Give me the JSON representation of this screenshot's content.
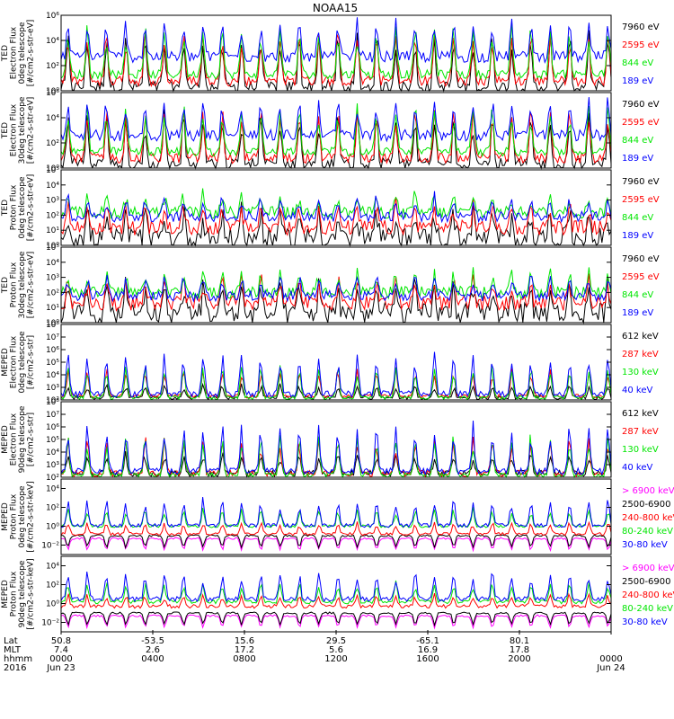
{
  "title": "NOAA15",
  "colors": {
    "black": "#000000",
    "blue": "#0000ff",
    "red": "#ff0000",
    "green": "#00e600",
    "magenta": "#ff00ff",
    "frame": "#000000"
  },
  "chart_data": [
    {
      "type": "line",
      "ylabel": [
        "TED",
        "Electron Flux",
        "0deg telescope",
        "[#/cm2-s-str-eV]"
      ],
      "yscale": "log",
      "ylim": [
        1,
        1000000
      ],
      "yticks": [
        {
          "v": 1,
          "label": "10⁰"
        },
        {
          "v": 100,
          "label": "10²"
        },
        {
          "v": 10000,
          "label": "10⁴"
        },
        {
          "v": 1000000,
          "label": "10⁶"
        }
      ],
      "series": [
        {
          "name": "7960 eV",
          "color": "black",
          "base": 2,
          "peak": 60000,
          "noise": 1.0
        },
        {
          "name": "2595 eV",
          "color": "red",
          "base": 6,
          "peak": 100000,
          "noise": 0.8
        },
        {
          "name": "844 eV",
          "color": "green",
          "base": 20,
          "peak": 200000,
          "noise": 0.7
        },
        {
          "name": "189 eV",
          "color": "blue",
          "base": 500,
          "peak": 400000,
          "noise": 0.9
        }
      ]
    },
    {
      "type": "line",
      "ylabel": [
        "TED",
        "Electron Flux",
        "30deg telescope",
        "[#/cm2-s-str-eV]"
      ],
      "yscale": "log",
      "ylim": [
        1,
        1000000
      ],
      "yticks": [
        {
          "v": 1,
          "label": "10⁰"
        },
        {
          "v": 100,
          "label": "10²"
        },
        {
          "v": 10000,
          "label": "10⁴"
        },
        {
          "v": 1000000,
          "label": "10⁶"
        }
      ],
      "series": [
        {
          "name": "7960 eV",
          "color": "black",
          "base": 2,
          "peak": 50000,
          "noise": 1.0
        },
        {
          "name": "2595 eV",
          "color": "red",
          "base": 6,
          "peak": 90000,
          "noise": 0.8
        },
        {
          "name": "844 eV",
          "color": "green",
          "base": 20,
          "peak": 150000,
          "noise": 0.7
        },
        {
          "name": "189 eV",
          "color": "blue",
          "base": 400,
          "peak": 300000,
          "noise": 0.9
        }
      ]
    },
    {
      "type": "line",
      "ylabel": [
        "TED",
        "Proton Flux",
        "0deg telescope",
        "[#/cm2-s-str-eV]"
      ],
      "yscale": "log",
      "ylim": [
        1,
        100000
      ],
      "yticks": [
        {
          "v": 1,
          "label": "10⁰"
        },
        {
          "v": 10,
          "label": "10¹"
        },
        {
          "v": 100,
          "label": "10²"
        },
        {
          "v": 1000,
          "label": "10³"
        },
        {
          "v": 10000,
          "label": "10⁴"
        },
        {
          "v": 100000,
          "label": "10⁵"
        }
      ],
      "series": [
        {
          "name": "7960 eV",
          "color": "black",
          "base": 3,
          "peak": 400,
          "noise": 1.4
        },
        {
          "name": "2595 eV",
          "color": "red",
          "base": 15,
          "peak": 800,
          "noise": 1.0
        },
        {
          "name": "844 eV",
          "color": "green",
          "base": 150,
          "peak": 3000,
          "noise": 0.8
        },
        {
          "name": "189 eV",
          "color": "blue",
          "base": 80,
          "peak": 2000,
          "noise": 0.7
        }
      ]
    },
    {
      "type": "line",
      "ylabel": [
        "TED",
        "Proton Flux",
        "30deg telescope",
        "[#/cm2-s-str-eV]"
      ],
      "yscale": "log",
      "ylim": [
        1,
        100000
      ],
      "yticks": [
        {
          "v": 1,
          "label": "10⁰"
        },
        {
          "v": 10,
          "label": "10¹"
        },
        {
          "v": 100,
          "label": "10²"
        },
        {
          "v": 1000,
          "label": "10³"
        },
        {
          "v": 10000,
          "label": "10⁴"
        },
        {
          "v": 100000,
          "label": "10⁵"
        }
      ],
      "series": [
        {
          "name": "7960 eV",
          "color": "black",
          "base": 4,
          "peak": 500,
          "noise": 1.4
        },
        {
          "name": "2595 eV",
          "color": "red",
          "base": 20,
          "peak": 1000,
          "noise": 1.0
        },
        {
          "name": "844 eV",
          "color": "green",
          "base": 100,
          "peak": 3000,
          "noise": 0.8
        },
        {
          "name": "189 eV",
          "color": "blue",
          "base": 60,
          "peak": 1500,
          "noise": 0.7
        }
      ]
    },
    {
      "type": "line",
      "ylabel": [
        "MEPED",
        "Electron Flux",
        "0deg telescope",
        "[#/cm2-s-str]"
      ],
      "yscale": "log",
      "ylim": [
        100,
        100000000
      ],
      "yticks": [
        {
          "v": 100,
          "label": "10²"
        },
        {
          "v": 1000,
          "label": "10³"
        },
        {
          "v": 10000,
          "label": "10⁴"
        },
        {
          "v": 100000,
          "label": "10⁵"
        },
        {
          "v": 1000000,
          "label": "10⁶"
        },
        {
          "v": 10000000,
          "label": "10⁷"
        },
        {
          "v": 100000000,
          "label": "10⁸"
        }
      ],
      "series": [
        {
          "name": "612 keV",
          "color": "black",
          "base": 150,
          "peak": 2000,
          "noise": 0.3
        },
        {
          "name": "287 keV",
          "color": "red",
          "base": 200,
          "peak": 40000,
          "noise": 0.3
        },
        {
          "name": "130 keV",
          "color": "green",
          "base": 150,
          "peak": 100000,
          "noise": 0.3
        },
        {
          "name": "40 keV",
          "color": "blue",
          "base": 300,
          "peak": 1000000,
          "noise": 0.5
        }
      ]
    },
    {
      "type": "line",
      "ylabel": [
        "MEPED",
        "Electron Flux",
        "90deg telescope",
        "[#/cm2-s-str]"
      ],
      "yscale": "log",
      "ylim": [
        100,
        100000000
      ],
      "yticks": [
        {
          "v": 100,
          "label": "10²"
        },
        {
          "v": 1000,
          "label": "10³"
        },
        {
          "v": 10000,
          "label": "10⁴"
        },
        {
          "v": 100000,
          "label": "10⁵"
        },
        {
          "v": 1000000,
          "label": "10⁶"
        },
        {
          "v": 10000000,
          "label": "10⁷"
        },
        {
          "v": 100000000,
          "label": "10⁸"
        }
      ],
      "series": [
        {
          "name": "612 keV",
          "color": "black",
          "base": 200,
          "peak": 10000,
          "noise": 0.5
        },
        {
          "name": "287 keV",
          "color": "red",
          "base": 200,
          "peak": 200000,
          "noise": 0.5
        },
        {
          "name": "130 keV",
          "color": "green",
          "base": 150,
          "peak": 400000,
          "noise": 0.4
        },
        {
          "name": "40 keV",
          "color": "blue",
          "base": 300,
          "peak": 2000000,
          "noise": 0.5
        }
      ]
    },
    {
      "type": "line",
      "ylabel": [
        "MEPED",
        "Proton Flux",
        "0deg telescope",
        "[#/cm2-s-str-keV]"
      ],
      "yscale": "log",
      "ylim": [
        0.001,
        100000
      ],
      "yticks": [
        {
          "v": 0.01,
          "label": "10⁻²"
        },
        {
          "v": 1,
          "label": "10⁰"
        },
        {
          "v": 100,
          "label": "10²"
        },
        {
          "v": 10000,
          "label": "10⁴"
        }
      ],
      "series": [
        {
          "name": "> 6900 keV",
          "color": "magenta",
          "base": 0.05,
          "peak": 0.02,
          "noise": 0.2,
          "dip": true
        },
        {
          "name": "2500-6900",
          "color": "black",
          "base": 0.1,
          "peak": 0.05,
          "noise": 0.2,
          "dip": true
        },
        {
          "name": "240-800 keV",
          "color": "red",
          "base": 0.15,
          "peak": 3,
          "noise": 0.3
        },
        {
          "name": "80-240 keV",
          "color": "green",
          "base": 1,
          "peak": 100,
          "noise": 0.3
        },
        {
          "name": "30-80 keV",
          "color": "blue",
          "base": 1.2,
          "peak": 1000,
          "noise": 0.4
        }
      ]
    },
    {
      "type": "line",
      "ylabel": [
        "MEPED",
        "Proton Flux",
        "90deg telescope",
        "[#/cm2-s-str-keV]"
      ],
      "yscale": "log",
      "ylim": [
        0.001,
        100000
      ],
      "yticks": [
        {
          "v": 0.01,
          "label": "10⁻²"
        },
        {
          "v": 1,
          "label": "10⁰"
        },
        {
          "v": 100,
          "label": "10²"
        },
        {
          "v": 10000,
          "label": "10⁴"
        }
      ],
      "series": [
        {
          "name": "> 6900 keV",
          "color": "magenta",
          "base": 0.05,
          "peak": 0.02,
          "noise": 0.2,
          "dip": true
        },
        {
          "name": "2500-6900",
          "color": "black",
          "base": 0.1,
          "peak": 0.05,
          "noise": 0.2,
          "dip": true
        },
        {
          "name": "240-800 keV",
          "color": "red",
          "base": 0.5,
          "peak": 10,
          "noise": 0.4
        },
        {
          "name": "80-240 keV",
          "color": "green",
          "base": 1.5,
          "peak": 200,
          "noise": 0.4
        },
        {
          "name": "30-80 keV",
          "color": "blue",
          "base": 3,
          "peak": 3000,
          "noise": 0.5
        }
      ]
    }
  ],
  "x_axis": {
    "row_labels": [
      "Lat",
      "MLT",
      "hhmm",
      "2016"
    ],
    "ticks": [
      {
        "t": 0,
        "lat": "50.8",
        "mlt": "7.4",
        "hhmm": "0000",
        "date": "Jun 23"
      },
      {
        "t": 240,
        "lat": "-53.5",
        "mlt": "2.6",
        "hhmm": "0400",
        "date": ""
      },
      {
        "t": 480,
        "lat": "15.6",
        "mlt": "17.2",
        "hhmm": "0800",
        "date": ""
      },
      {
        "t": 720,
        "lat": "29.5",
        "mlt": "5.6",
        "hhmm": "1200",
        "date": ""
      },
      {
        "t": 960,
        "lat": "-65.1",
        "mlt": "16.9",
        "hhmm": "1600",
        "date": ""
      },
      {
        "t": 1200,
        "lat": "80.1",
        "mlt": "17.8",
        "hhmm": "2000",
        "date": ""
      },
      {
        "t": 1440,
        "lat": "",
        "mlt": "",
        "hhmm": "0000",
        "date": "Jun 24"
      }
    ]
  }
}
